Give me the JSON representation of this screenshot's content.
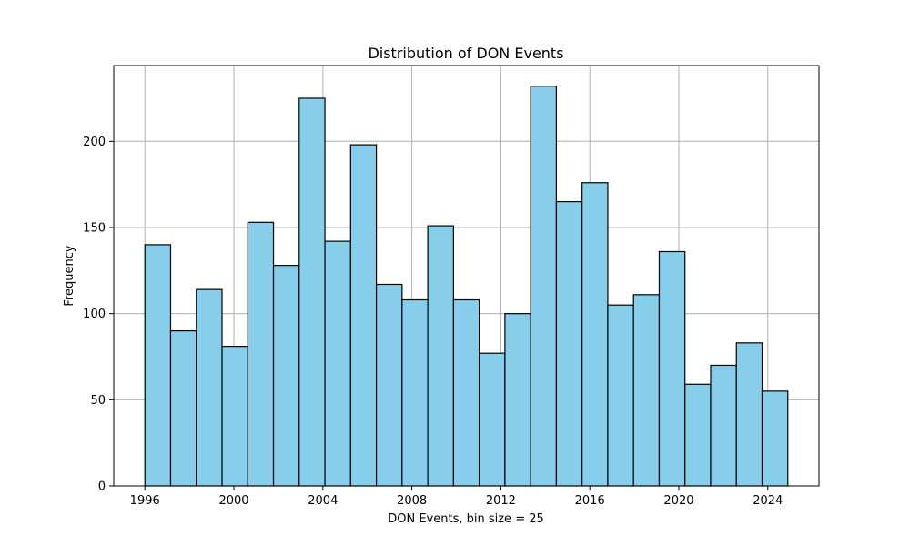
{
  "chart_data": {
    "type": "bar",
    "title": "Distribution of DON Events",
    "xlabel": "DON Events, bin size = 25",
    "ylabel": "Frequency",
    "xlim": [
      1994.6,
      2026.3
    ],
    "ylim": [
      0,
      244
    ],
    "x_ticks": [
      1996,
      2000,
      2004,
      2008,
      2012,
      2016,
      2020,
      2024
    ],
    "y_ticks": [
      0,
      50,
      100,
      150,
      200
    ],
    "grid": true,
    "bin_start": 1996,
    "bin_end": 2024.9,
    "values": [
      140,
      90,
      114,
      81,
      153,
      128,
      225,
      142,
      198,
      117,
      108,
      151,
      108,
      77,
      100,
      232,
      165,
      176,
      105,
      111,
      136,
      59,
      70,
      83,
      55
    ],
    "colors": {
      "bar_fill": "#87ceeb",
      "bar_edge": "#000000",
      "grid": "#b0b0b0"
    }
  }
}
